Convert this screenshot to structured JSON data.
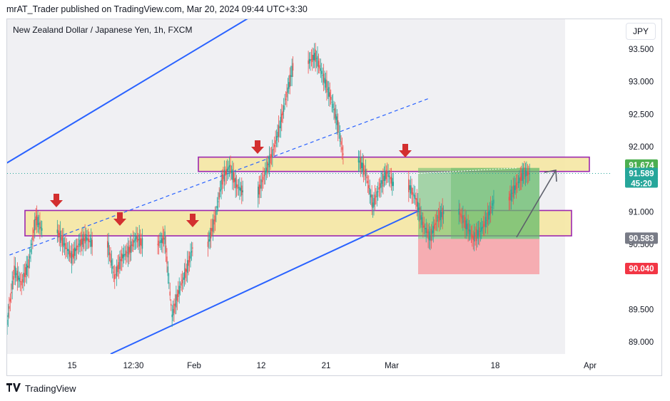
{
  "header": {
    "publisher_line": "mrAT_Trader published on TradingView.com, Mar 20, 2024 09:44 UTC+3:30"
  },
  "symbol": {
    "title": "New Zealand Dollar / Japanese Yen, 1h, FXCM",
    "currency": "JPY"
  },
  "footer": {
    "brand": "TradingView",
    "logo_icon": "tradingview-logo-icon"
  },
  "colors": {
    "channel": "#2962ff",
    "zone_fill": "#f5e7a3",
    "zone_border": "#9c27b0",
    "arrow": "#d32f2f",
    "profit": "#66bb6a",
    "stop": "#f7a1a6",
    "bull": "#26a69a",
    "bear": "#ef5350"
  },
  "chart_data": {
    "type": "line",
    "title": "New Zealand Dollar / Japanese Yen, 1h, FXCM",
    "xlabel": "",
    "ylabel": "",
    "ylim": [
      88.8,
      93.8
    ],
    "x_ticks": [
      "15",
      "12:30",
      "Feb",
      "12",
      "21",
      "Mar",
      "18",
      "Apr"
    ],
    "y_ticks": [
      "89.000",
      "89.500",
      "90.500",
      "91.000",
      "92.000",
      "92.500",
      "93.000",
      "93.500"
    ],
    "grid": false,
    "series": [
      {
        "x": [
          "2024-01-08",
          "2024-01-09",
          "2024-01-10",
          "2024-01-11",
          "2024-01-12",
          "2024-01-15",
          "2024-01-16",
          "2024-01-17",
          "2024-01-18",
          "2024-01-19",
          "2024-01-22",
          "2024-01-23",
          "2024-01-24",
          "2024-01-25",
          "2024-01-26",
          "2024-01-29",
          "2024-01-30",
          "2024-01-31",
          "2024-02-01",
          "2024-02-02",
          "2024-02-05",
          "2024-02-06",
          "2024-02-07",
          "2024-02-08",
          "2024-02-09",
          "2024-02-12",
          "2024-02-13",
          "2024-02-14",
          "2024-02-15",
          "2024-02-16",
          "2024-02-19",
          "2024-02-20",
          "2024-02-21",
          "2024-02-22",
          "2024-02-23",
          "2024-02-26",
          "2024-02-27",
          "2024-02-28",
          "2024-02-29",
          "2024-03-01",
          "2024-03-04",
          "2024-03-05",
          "2024-03-06",
          "2024-03-07",
          "2024-03-08",
          "2024-03-11",
          "2024-03-12",
          "2024-03-13",
          "2024-03-14",
          "2024-03-15",
          "2024-03-18",
          "2024-03-19",
          "2024-03-20"
        ],
        "values": [
          89.3,
          90.1,
          89.9,
          90.2,
          90.9,
          90.7,
          90.5,
          90.3,
          90.5,
          90.6,
          90.5,
          90.0,
          90.3,
          90.4,
          90.6,
          90.5,
          90.6,
          89.4,
          89.8,
          90.1,
          90.5,
          90.9,
          91.5,
          91.7,
          91.4,
          91.3,
          91.6,
          91.9,
          92.3,
          92.8,
          93.3,
          93.4,
          93.1,
          92.8,
          92.4,
          91.8,
          91.6,
          91.1,
          91.4,
          91.6,
          91.4,
          91.2,
          90.8,
          90.6,
          90.9,
          91.0,
          90.8,
          90.6,
          90.7,
          90.9,
          91.2,
          91.4,
          91.589
        ]
      }
    ],
    "key_levels": [
      91.674,
      91.589,
      90.583,
      90.04
    ],
    "price_labels": [
      "91.674",
      "91.589",
      "45:20",
      "90.583",
      "90.040"
    ],
    "zones": [
      {
        "low": 91.62,
        "high": 91.84
      },
      {
        "low": 90.63,
        "high": 91.02
      }
    ],
    "channel": {
      "upper": [
        [
          -0.5,
          91.72
        ],
        [
          40.5,
          94.43
        ]
      ],
      "lower": [
        [
          10,
          88.7
        ],
        [
          57.5,
          91.02
        ]
      ],
      "mid_dashed": [
        [
          -0.5,
          90.3
        ],
        [
          59,
          92.75
        ]
      ]
    },
    "position": {
      "entry": 91.589,
      "target": 91.674,
      "stop": 90.04,
      "entry_label": "90.583"
    },
    "arrows": [
      "2024-01-12",
      "2024-01-19",
      "2024-01-31",
      "2024-02-12",
      "2024-02-29"
    ]
  }
}
